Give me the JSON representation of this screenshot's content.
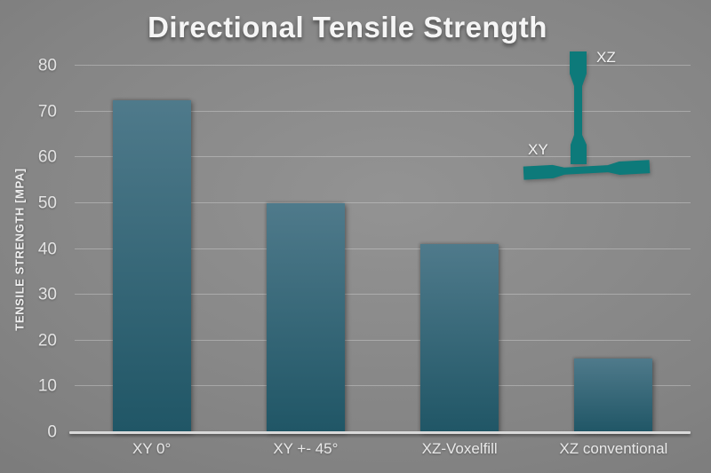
{
  "slide": {
    "title": "Directional Tensile Strength"
  },
  "chart_data": {
    "type": "bar",
    "title": "Directional Tensile Strength",
    "categories": [
      "XY 0°",
      "XY +- 45°",
      "XZ-Voxelfill",
      "XZ conventional"
    ],
    "values": [
      72.5,
      50,
      41,
      16
    ],
    "xlabel": "",
    "ylabel": "TENSILE STRENGTH [MPA]",
    "ylim": [
      0,
      80
    ],
    "yticks": [
      0,
      10,
      20,
      30,
      40,
      50,
      60,
      70,
      80
    ],
    "grid": true,
    "legend": false,
    "annotations": [
      "XZ",
      "XY"
    ]
  },
  "specimens": {
    "xz_label": "XZ",
    "xy_label": "XY",
    "color": "#0d7a7a"
  },
  "colors": {
    "background_center": "#939393",
    "background_edge": "#6d6d6d",
    "bar_gradient_top": "#4f7a8b",
    "bar_gradient_bottom": "#205666",
    "axis_line": "#d9d9d9",
    "grid_line": "rgba(255,255,255,0.28)",
    "text": "#f2f2f2",
    "specimen_teal": "#0d7a7a"
  }
}
